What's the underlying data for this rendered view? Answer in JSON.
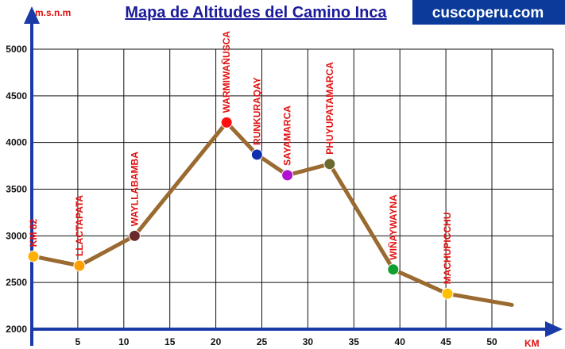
{
  "header": {
    "title": "Mapa de Altitudes del Camino Inca",
    "brand": "cuscoperu.com"
  },
  "colors": {
    "axis": "#1a3aa8",
    "line": "#9a6a30",
    "grid": "#111111",
    "label": "#e01010",
    "brand_bg": "#0a3a9a"
  },
  "chart_data": {
    "type": "line",
    "xlabel": "KM",
    "ylabel": "m.s.n.m",
    "xlim": [
      0,
      53
    ],
    "ylim": [
      2000,
      5000
    ],
    "x_ticks": [
      5,
      10,
      15,
      20,
      25,
      30,
      35,
      40,
      45,
      50
    ],
    "y_ticks": [
      2000,
      2500,
      3000,
      3500,
      4000,
      4500,
      5000
    ],
    "grid": true,
    "points": [
      {
        "label": "KM 82",
        "x": 0,
        "y": 2780,
        "color": "#ffb000"
      },
      {
        "label": "LLACTAPATA",
        "x": 5,
        "y": 2680,
        "color": "#ffa000"
      },
      {
        "label": "WAYLLABAMBA",
        "x": 11,
        "y": 3000,
        "color": "#6a2a2a"
      },
      {
        "label": "WARMIWAÑUSCA",
        "x": 21,
        "y": 4215,
        "color": "#ff1010"
      },
      {
        "label": "RUNKURAQAY",
        "x": 24.3,
        "y": 3870,
        "color": "#1030b0"
      },
      {
        "label": "SAYAMARCA",
        "x": 27.6,
        "y": 3650,
        "color": "#b010d0"
      },
      {
        "label": "PHUYUPATAMARCA",
        "x": 32.2,
        "y": 3770,
        "color": "#6a6a30"
      },
      {
        "label": "WIÑAYWAYNA",
        "x": 39.1,
        "y": 2640,
        "color": "#10a030"
      },
      {
        "label": "MACHUPICCHU",
        "x": 45,
        "y": 2380,
        "color": "#ffc000"
      },
      {
        "label": "",
        "x": 52,
        "y": 2260,
        "color": ""
      }
    ]
  }
}
